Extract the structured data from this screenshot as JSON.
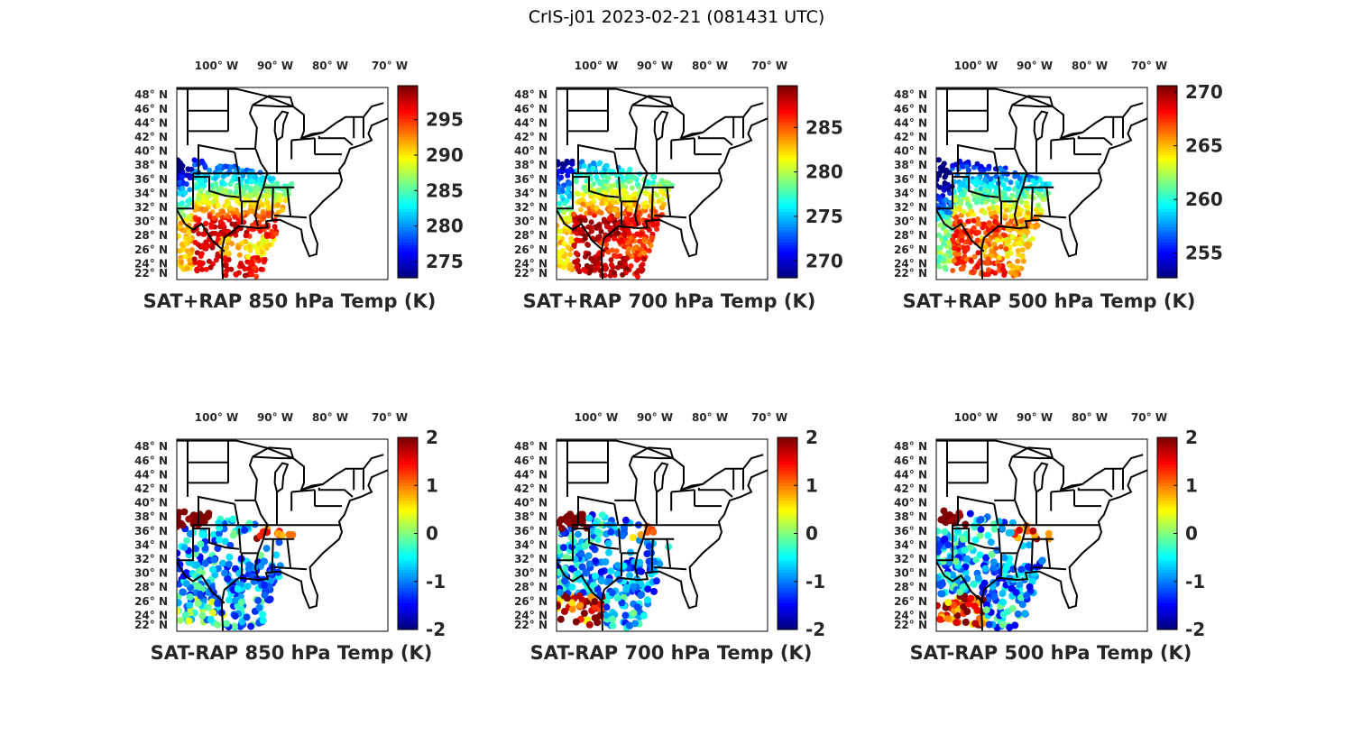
{
  "title": "CrIS-j01 2023-02-21 (081431 UTC)",
  "lon_labels": [
    "100° W",
    "90° W",
    "80° W",
    "70° W"
  ],
  "lat_labels": [
    "48° N",
    "46° N",
    "44° N",
    "42° N",
    "40° N",
    "38° N",
    "36° N",
    "34° N",
    "32° N",
    "30° N",
    "28° N",
    "26° N",
    "24° N",
    "22° N"
  ],
  "colormap": "jet",
  "chart_data": [
    {
      "type": "scatter",
      "map": true,
      "title": "SAT+RAP 850 hPa Temp (K)",
      "clim": [
        272.7,
        299.8
      ],
      "cbar_ticks": [
        275,
        280,
        285,
        290,
        295
      ]
    },
    {
      "type": "scatter",
      "map": true,
      "title": "SAT+RAP 700 hPa Temp (K)",
      "clim": [
        268.1,
        289.7
      ],
      "cbar_ticks": [
        270,
        275,
        280,
        285
      ]
    },
    {
      "type": "scatter",
      "map": true,
      "title": "SAT+RAP 500 hPa Temp (K)",
      "clim": [
        252.7,
        270.6
      ],
      "cbar_ticks": [
        255,
        260,
        265,
        270
      ]
    },
    {
      "type": "scatter",
      "map": true,
      "title": "SAT-RAP 850 hPa Temp (K)",
      "clim": [
        -2,
        2
      ],
      "cbar_ticks": [
        -2,
        -1,
        0,
        1,
        2
      ]
    },
    {
      "type": "scatter",
      "map": true,
      "title": "SAT-RAP 700 hPa Temp (K)",
      "clim": [
        -2,
        2
      ],
      "cbar_ticks": [
        -2,
        -1,
        0,
        1,
        2
      ]
    },
    {
      "type": "scatter",
      "map": true,
      "title": "SAT-RAP 500 hPa Temp (K)",
      "clim": [
        -2,
        2
      ],
      "cbar_ticks": [
        -2,
        -1,
        0,
        1,
        2
      ]
    }
  ]
}
